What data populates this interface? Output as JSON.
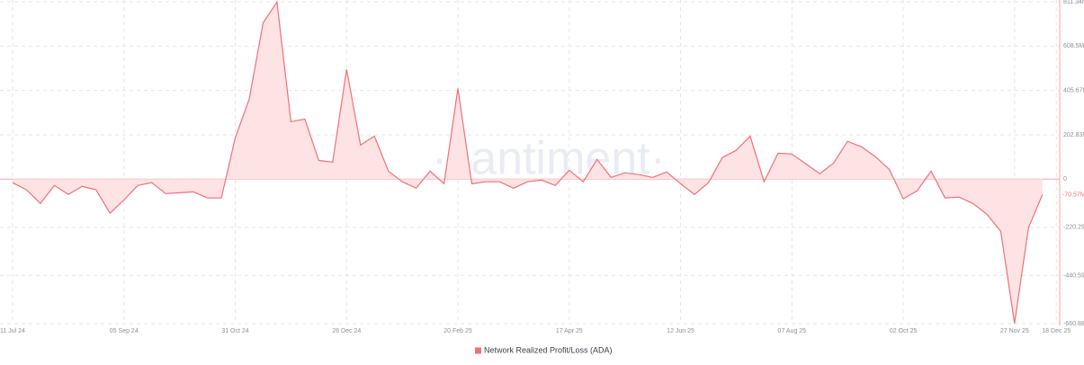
{
  "chart_data": {
    "type": "area",
    "watermark": "·santiment·",
    "categories": [
      "11 Jul 24",
      null,
      null,
      null,
      null,
      null,
      null,
      null,
      "05 Sep 24",
      null,
      null,
      null,
      null,
      null,
      null,
      null,
      "31 Oct 24",
      null,
      null,
      null,
      null,
      null,
      null,
      null,
      "26 Dec 24",
      null,
      null,
      null,
      null,
      null,
      null,
      null,
      "20 Feb 25",
      null,
      null,
      null,
      null,
      null,
      null,
      null,
      "17 Apr 25",
      null,
      null,
      null,
      null,
      null,
      null,
      null,
      "12 Jun 25",
      null,
      null,
      null,
      null,
      null,
      null,
      null,
      "07 Aug 25",
      null,
      null,
      null,
      null,
      null,
      null,
      null,
      "02 Oct 25",
      null,
      null,
      null,
      null,
      null,
      null,
      null,
      "27 Nov 25",
      null,
      null,
      "18 Dec 25"
    ],
    "series": [
      {
        "name": "Network Realized Profit/Loss (ADA)",
        "color": "#f0707a",
        "values": [
          -16,
          -49,
          -111,
          -29,
          -70,
          -33,
          -49,
          -156,
          -95,
          -29,
          -16,
          -66,
          -62,
          -58,
          -86,
          -86,
          189,
          366,
          715,
          810,
          263,
          275,
          86,
          78,
          502,
          156,
          197,
          37,
          -12,
          -41,
          37,
          -21,
          415,
          -21,
          -12,
          -12,
          -41,
          -12,
          -4,
          -29,
          41,
          -12,
          90,
          8,
          29,
          21,
          8,
          33,
          -21,
          -70,
          -16,
          99,
          132,
          197,
          -12,
          119,
          115,
          70,
          25,
          74,
          173,
          148,
          103,
          45,
          -90,
          -53,
          37,
          -86,
          -82,
          -111,
          -160,
          -238,
          -660,
          -222,
          -70.57,
          null
        ],
        "value_labels": [
          null,
          null,
          null,
          null,
          null,
          null,
          null,
          null,
          null,
          null,
          null,
          null,
          null,
          null,
          null,
          null,
          null,
          null,
          null,
          null,
          null,
          null,
          null,
          null,
          null,
          null,
          null,
          null,
          null,
          null,
          null,
          null,
          null,
          null,
          null,
          null,
          null,
          null,
          null,
          null,
          null,
          null,
          null,
          null,
          null,
          null,
          null,
          null,
          null,
          null,
          null,
          null,
          null,
          null,
          null,
          null,
          null,
          null,
          null,
          null,
          null,
          null,
          null,
          null,
          null,
          null,
          null,
          null,
          null,
          null,
          null,
          null,
          null,
          null,
          "-70.57M",
          null
        ]
      }
    ],
    "ylim": [
      -660.88,
      811.34
    ],
    "yticks": [
      {
        "value": -660.88,
        "label": "-660.88M"
      },
      {
        "value": -440.59,
        "label": "-440.59M"
      },
      {
        "value": -220.29,
        "label": "-220.29M"
      },
      0,
      {
        "value": 202.83,
        "label": "202.83M"
      },
      {
        "value": 405.67,
        "label": "405.67M"
      },
      {
        "value": 608.5,
        "label": "608.5M"
      },
      {
        "value": 811.34,
        "label": "811.34M"
      }
    ],
    "grid": true
  }
}
